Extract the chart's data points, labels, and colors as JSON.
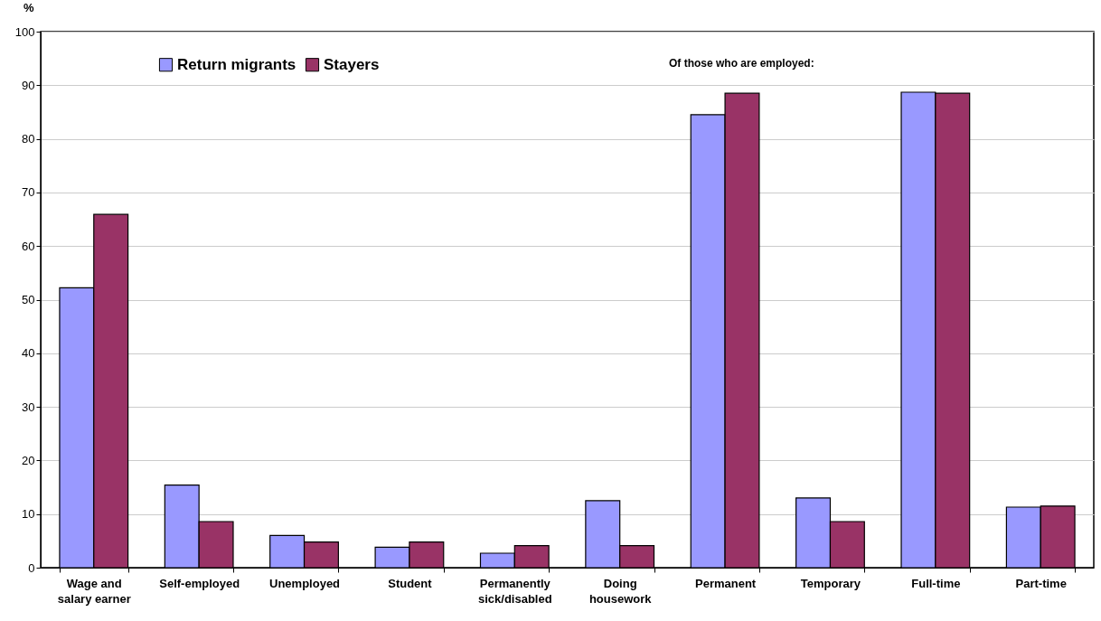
{
  "chart_data": {
    "type": "bar",
    "ylabel": "%",
    "categories": [
      "Wage and salary earner",
      "Self-employed",
      "Unemployed",
      "Student",
      "Permanently sick/disabled",
      "Doing housework",
      "Permanent",
      "Temporary",
      "Full-time",
      "Part-time"
    ],
    "series": [
      {
        "name": "Return migrants",
        "color": "#9999ff",
        "values": [
          52.2,
          15.4,
          6.0,
          3.8,
          2.7,
          12.5,
          84.5,
          13.0,
          88.7,
          11.3
        ]
      },
      {
        "name": "Stayers",
        "color": "#993366",
        "values": [
          65.9,
          8.6,
          4.8,
          4.8,
          4.1,
          4.1,
          88.5,
          8.6,
          88.5,
          11.5
        ]
      }
    ],
    "ylim": [
      0,
      100
    ],
    "yticks": [
      0,
      10,
      20,
      30,
      40,
      50,
      60,
      70,
      80,
      90,
      100
    ],
    "grid": "y",
    "legend": "top left",
    "annotations": [
      "Of those who are employed:"
    ]
  }
}
